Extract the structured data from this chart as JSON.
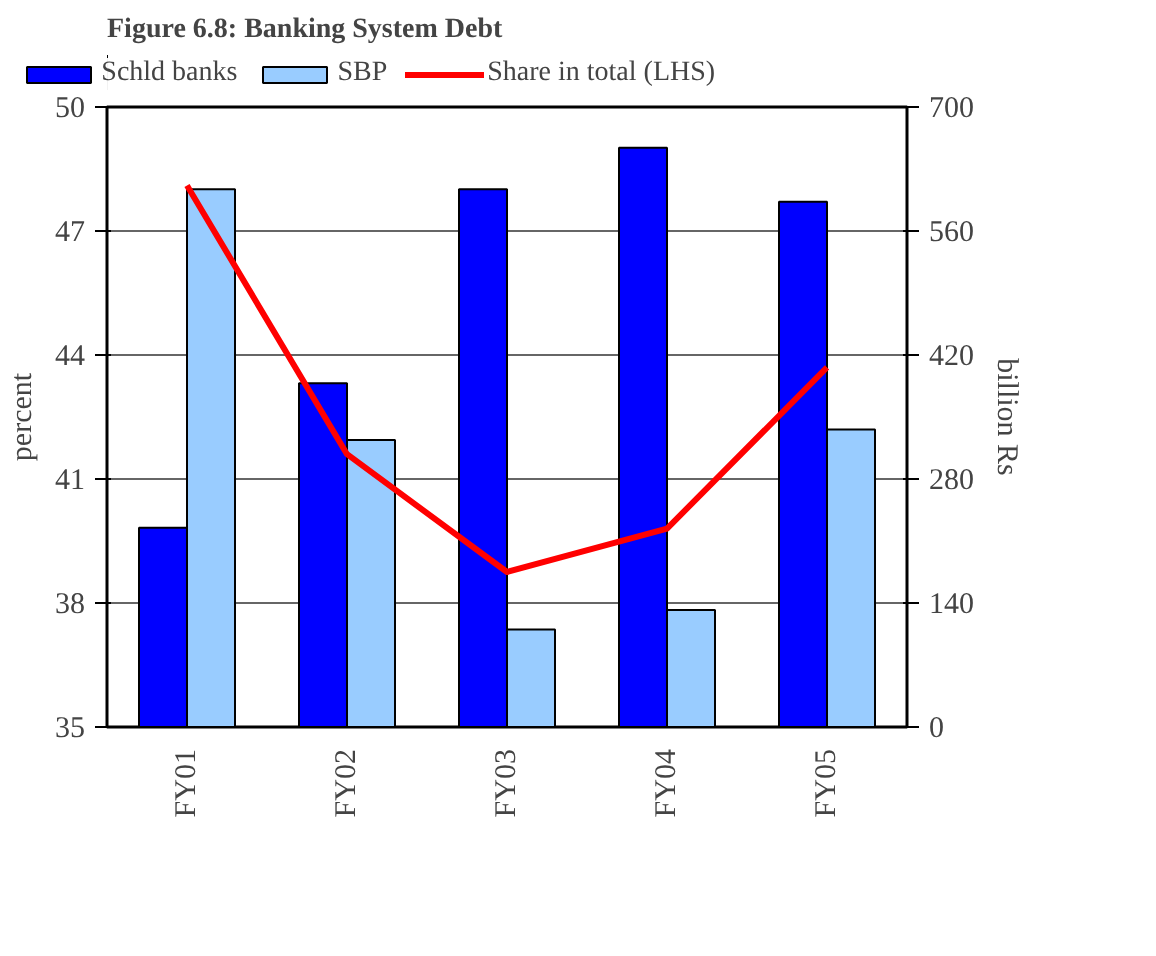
{
  "chart_data": {
    "type": "bar",
    "title": "Figure 6.8: Banking System Debt",
    "ylabel": "percent",
    "y2label": "billion Rs",
    "categories": [
      "FY01",
      "FY02",
      "FY03",
      "FY04",
      "FY05"
    ],
    "series": [
      {
        "name": "Schld banks",
        "color": "#0000ff",
        "values": [
          225,
          388,
          607,
          654,
          593
        ],
        "axis": "y2"
      },
      {
        "name": "SBP",
        "color": "#99ccff",
        "values": [
          607,
          324,
          110,
          132,
          336
        ],
        "axis": "y2"
      },
      {
        "name": "Share in total (LHS)",
        "type": "line",
        "color": "#ff0000",
        "values": [
          48.1,
          41.6,
          38.75,
          39.8,
          43.7
        ],
        "axis": "y"
      }
    ],
    "ylim": [
      35,
      50
    ],
    "yticks": [
      35,
      38,
      41,
      44,
      47,
      50
    ],
    "y2lim": [
      0,
      700
    ],
    "y2ticks": [
      0,
      140,
      280,
      420,
      560,
      700
    ],
    "grid": "y",
    "legend": "top"
  }
}
